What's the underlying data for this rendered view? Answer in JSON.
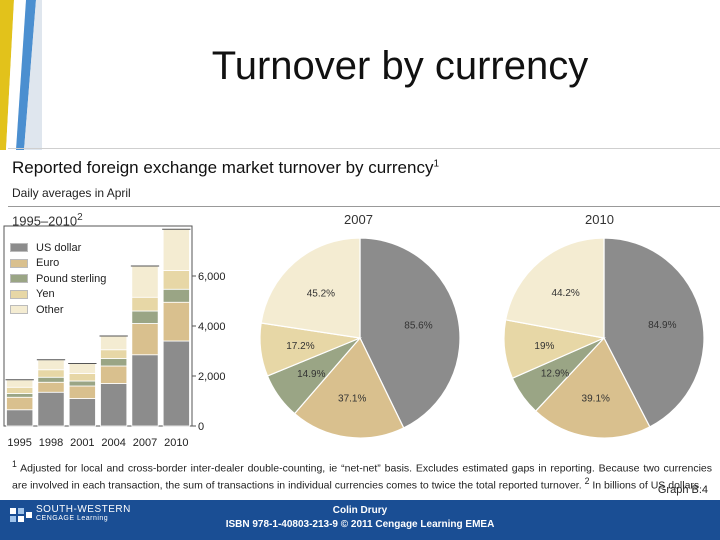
{
  "slide": {
    "title": "Turnover by currency"
  },
  "figure": {
    "title": "Reported foreign exchange market turnover by currency",
    "title_sup": "1",
    "subtitle": "Daily averages in April",
    "graph_ref": "Graph B.4"
  },
  "footnote": {
    "marker": "1",
    "text1": "Adjusted for local and cross-border inter-dealer double-counting, ie “net-net” basis. Excludes estimated gaps in reporting. Because two currencies are involved in each transaction, the sum of transactions in individual currencies comes to twice the total reported turnover.",
    "marker2": "2",
    "text2": "In billions of US dollars."
  },
  "footer": {
    "publisher_line1": "SOUTH-WESTERN",
    "publisher_line2": "CENGAGE Learning",
    "author": "Colin Drury",
    "isbn": "ISBN 978-1-40803-213-9 © 2011 Cengage Learning EMEA"
  },
  "colors": {
    "US dollar": "#8c8c8c",
    "Euro": "#d9c08e",
    "Pound sterling": "#9aa585",
    "Yen": "#e7d7a6",
    "Other": "#f4ecd2"
  },
  "chart_data": [
    {
      "type": "bar",
      "stacked": true,
      "title": "1995–2010",
      "title_sup": "2",
      "categories": [
        "1995",
        "1998",
        "2001",
        "2004",
        "2007",
        "2010"
      ],
      "series": [
        {
          "name": "US dollar",
          "values": [
            650,
            1350,
            1100,
            1700,
            2850,
            3400
          ]
        },
        {
          "name": "Euro",
          "values": [
            500,
            400,
            500,
            700,
            1250,
            1550
          ]
        },
        {
          "name": "Pound sterling",
          "values": [
            150,
            200,
            200,
            300,
            500,
            520
          ]
        },
        {
          "name": "Yen",
          "values": [
            250,
            300,
            300,
            350,
            550,
            750
          ]
        },
        {
          "name": "Other",
          "values": [
            300,
            400,
            400,
            550,
            1250,
            1650
          ]
        }
      ],
      "y_ticks": [
        "0",
        "2,000",
        "4,000",
        "6,000"
      ],
      "ylim": [
        0,
        8000
      ],
      "legend_position": "top-left"
    },
    {
      "type": "pie",
      "title": "2007",
      "labels": [
        "US dollar",
        "Euro",
        "Pound sterling",
        "Yen",
        "Other"
      ],
      "values": [
        85.6,
        37.1,
        14.9,
        17.2,
        45.2
      ],
      "value_labels": [
        "85.6%",
        "37.1%",
        "14.9%",
        "17.2%",
        "45.2%"
      ]
    },
    {
      "type": "pie",
      "title": "2010",
      "labels": [
        "US dollar",
        "Euro",
        "Pound sterling",
        "Yen",
        "Other"
      ],
      "values": [
        84.9,
        39.1,
        12.9,
        19,
        44.2
      ],
      "value_labels": [
        "84.9%",
        "39.1%",
        "12.9%",
        "19%",
        "44.2%"
      ]
    }
  ]
}
